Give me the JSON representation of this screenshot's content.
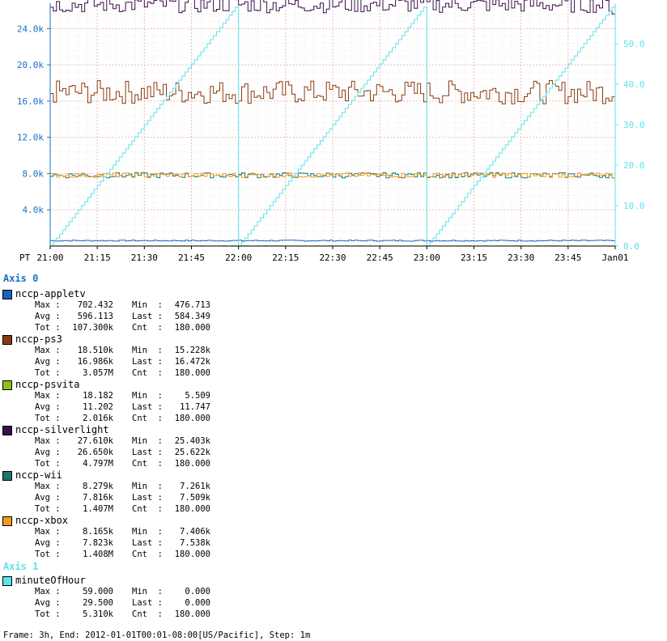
{
  "chart_data": {
    "type": "line",
    "x_axis": {
      "timezone_label": "PT",
      "tick_labels": [
        "21:00",
        "21:15",
        "21:30",
        "21:45",
        "22:00",
        "22:15",
        "22:30",
        "22:45",
        "23:00",
        "23:15",
        "23:30",
        "23:45",
        "Jan01"
      ],
      "start": "2011-12-31T21:00-08:00",
      "end": "2012-01-01T00:01-08:00",
      "step_minutes": 1
    },
    "y_axis_left": {
      "label": "Axis 0",
      "tick_labels": [
        "4.0k",
        "8.0k",
        "12.0k",
        "16.0k",
        "20.0k",
        "24.0k"
      ],
      "ylim": [
        0,
        26800
      ]
    },
    "y_axis_right": {
      "label": "Axis 1",
      "tick_labels": [
        "0.0",
        "10.0",
        "20.0",
        "30.0",
        "40.0",
        "50.0"
      ],
      "ylim": [
        0,
        60
      ]
    },
    "grid": true,
    "series": [
      {
        "name": "nccp-appletv",
        "axis": 0,
        "color": "#1565c0",
        "range": [
          476.713,
          702.432
        ],
        "last": 584.349
      },
      {
        "name": "nccp-ps3",
        "axis": 0,
        "color": "#8b3a0f",
        "range": [
          15228,
          18510
        ],
        "last": 16472
      },
      {
        "name": "nccp-psvita",
        "axis": 0,
        "color": "#8fbf1a",
        "range": [
          5.509,
          18.182
        ],
        "last": 11.747
      },
      {
        "name": "nccp-silverlight",
        "axis": 0,
        "color": "#3a0d4a",
        "range": [
          25403,
          27610
        ],
        "last": 25622
      },
      {
        "name": "nccp-wii",
        "axis": 0,
        "color": "#1a7a6a",
        "range": [
          7261,
          8279
        ],
        "last": 7509
      },
      {
        "name": "nccp-xbox",
        "axis": 0,
        "color": "#f39a1e",
        "range": [
          7406,
          8165
        ],
        "last": 7538
      },
      {
        "name": "minuteOfHour",
        "axis": 1,
        "color": "#5ee3e8",
        "range": [
          0,
          59
        ],
        "last": 0
      }
    ]
  },
  "legend": {
    "axis0_title": "Axis 0",
    "axis1_title": "Axis 1",
    "entries": [
      {
        "name": "nccp-appletv",
        "color": "#1565c0",
        "max": "702.432",
        "min": "476.713",
        "avg": "596.113",
        "last": "584.349",
        "tot": "107.300k",
        "cnt": "180.000"
      },
      {
        "name": "nccp-ps3",
        "color": "#8b3a0f",
        "max": "18.510k",
        "min": "15.228k",
        "avg": "16.986k",
        "last": "16.472k",
        "tot": "3.057M",
        "cnt": "180.000"
      },
      {
        "name": "nccp-psvita",
        "color": "#8fbf1a",
        "max": "18.182",
        "min": "5.509",
        "avg": "11.202",
        "last": "11.747",
        "tot": "2.016k",
        "cnt": "180.000"
      },
      {
        "name": "nccp-silverlight",
        "color": "#3a0d4a",
        "max": "27.610k",
        "min": "25.403k",
        "avg": "26.650k",
        "last": "25.622k",
        "tot": "4.797M",
        "cnt": "180.000"
      },
      {
        "name": "nccp-wii",
        "color": "#1a7a6a",
        "max": "8.279k",
        "min": "7.261k",
        "avg": "7.816k",
        "last": "7.509k",
        "tot": "1.407M",
        "cnt": "180.000"
      },
      {
        "name": "nccp-xbox",
        "color": "#f39a1e",
        "max": "8.165k",
        "min": "7.406k",
        "avg": "7.823k",
        "last": "7.538k",
        "tot": "1.408M",
        "cnt": "180.000"
      },
      {
        "name": "minuteOfHour",
        "color": "#5ee3e8",
        "max": "59.000",
        "min": "0.000",
        "avg": "29.500",
        "last": "0.000",
        "tot": "5.310k",
        "cnt": "180.000"
      }
    ],
    "stat_labels": {
      "max": "Max :",
      "min": "Min  :",
      "avg": "Avg :",
      "last": "Last :",
      "tot": "Tot :",
      "cnt": "Cnt  :"
    }
  },
  "footer": "Frame: 3h, End: 2012-01-01T00:01-08:00[US/Pacific], Step: 1m",
  "colors": {
    "axis0": "#1a6fc4",
    "axis1": "#5ee3e8",
    "grid": "#f3c0c0",
    "axis_line": "#000000"
  }
}
